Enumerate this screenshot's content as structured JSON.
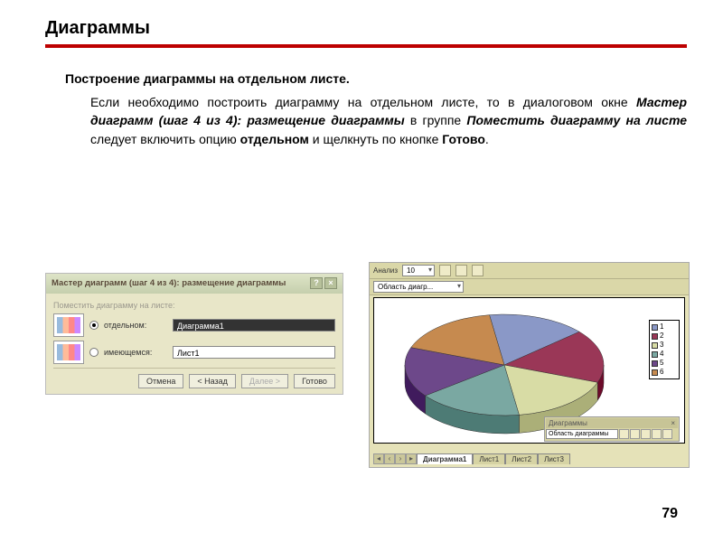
{
  "title": "Диаграммы",
  "subtitle": "Построение диаграммы на отдельном листе.",
  "paragraph_pre": "Если необходимо построить диаграмму на отдельном листе, то в диалоговом окне ",
  "i1": "Мастер диаграмм (шаг 4 из 4): размещение диаграммы",
  "mid1": " в группе ",
  "i2": "Поместить диаграмму на листе",
  "mid2": " следует включить опцию ",
  "b1": "отдельном",
  "mid3": " и щелкнуть по кнопке ",
  "b2": "Готово",
  "tail": ".",
  "page_number": "79",
  "dialog": {
    "title": "Мастер диаграмм (шаг 4 из 4): размещение диаграммы",
    "help_icon": "?",
    "close_icon": "×",
    "group_label": "Поместить диаграмму на листе:",
    "opt1_label": "отдельном:",
    "opt1_value": "Диаграмма1",
    "opt2_label": "имеющемся:",
    "opt2_value": "Лист1",
    "btn_cancel": "Отмена",
    "btn_back": "< Назад",
    "btn_next": "Далее >",
    "btn_finish": "Готово"
  },
  "chart": {
    "toolbar1_label": "Анализ",
    "toolbar1_value": "10",
    "toolbar2_label": "Область диагр...",
    "type": "pie_3d",
    "slices": [
      {
        "label": "1",
        "value": 16,
        "color": "#8a98c7"
      },
      {
        "label": "2",
        "value": 17,
        "color": "#9a3757"
      },
      {
        "label": "3",
        "value": 17,
        "color": "#d8dca5"
      },
      {
        "label": "4",
        "value": 17,
        "color": "#7aa8a2"
      },
      {
        "label": "5",
        "value": 16,
        "color": "#6d488a"
      },
      {
        "label": "6",
        "value": 17,
        "color": "#c68a4f"
      }
    ],
    "side_color": "#4a4a6a",
    "background": "#ffffff",
    "float_title": "Диаграммы",
    "float_sel": "Область диаграммы",
    "tabs": [
      "Диаграмма1",
      "Лист1",
      "Лист2",
      "Лист3"
    ],
    "active_tab": 0
  }
}
